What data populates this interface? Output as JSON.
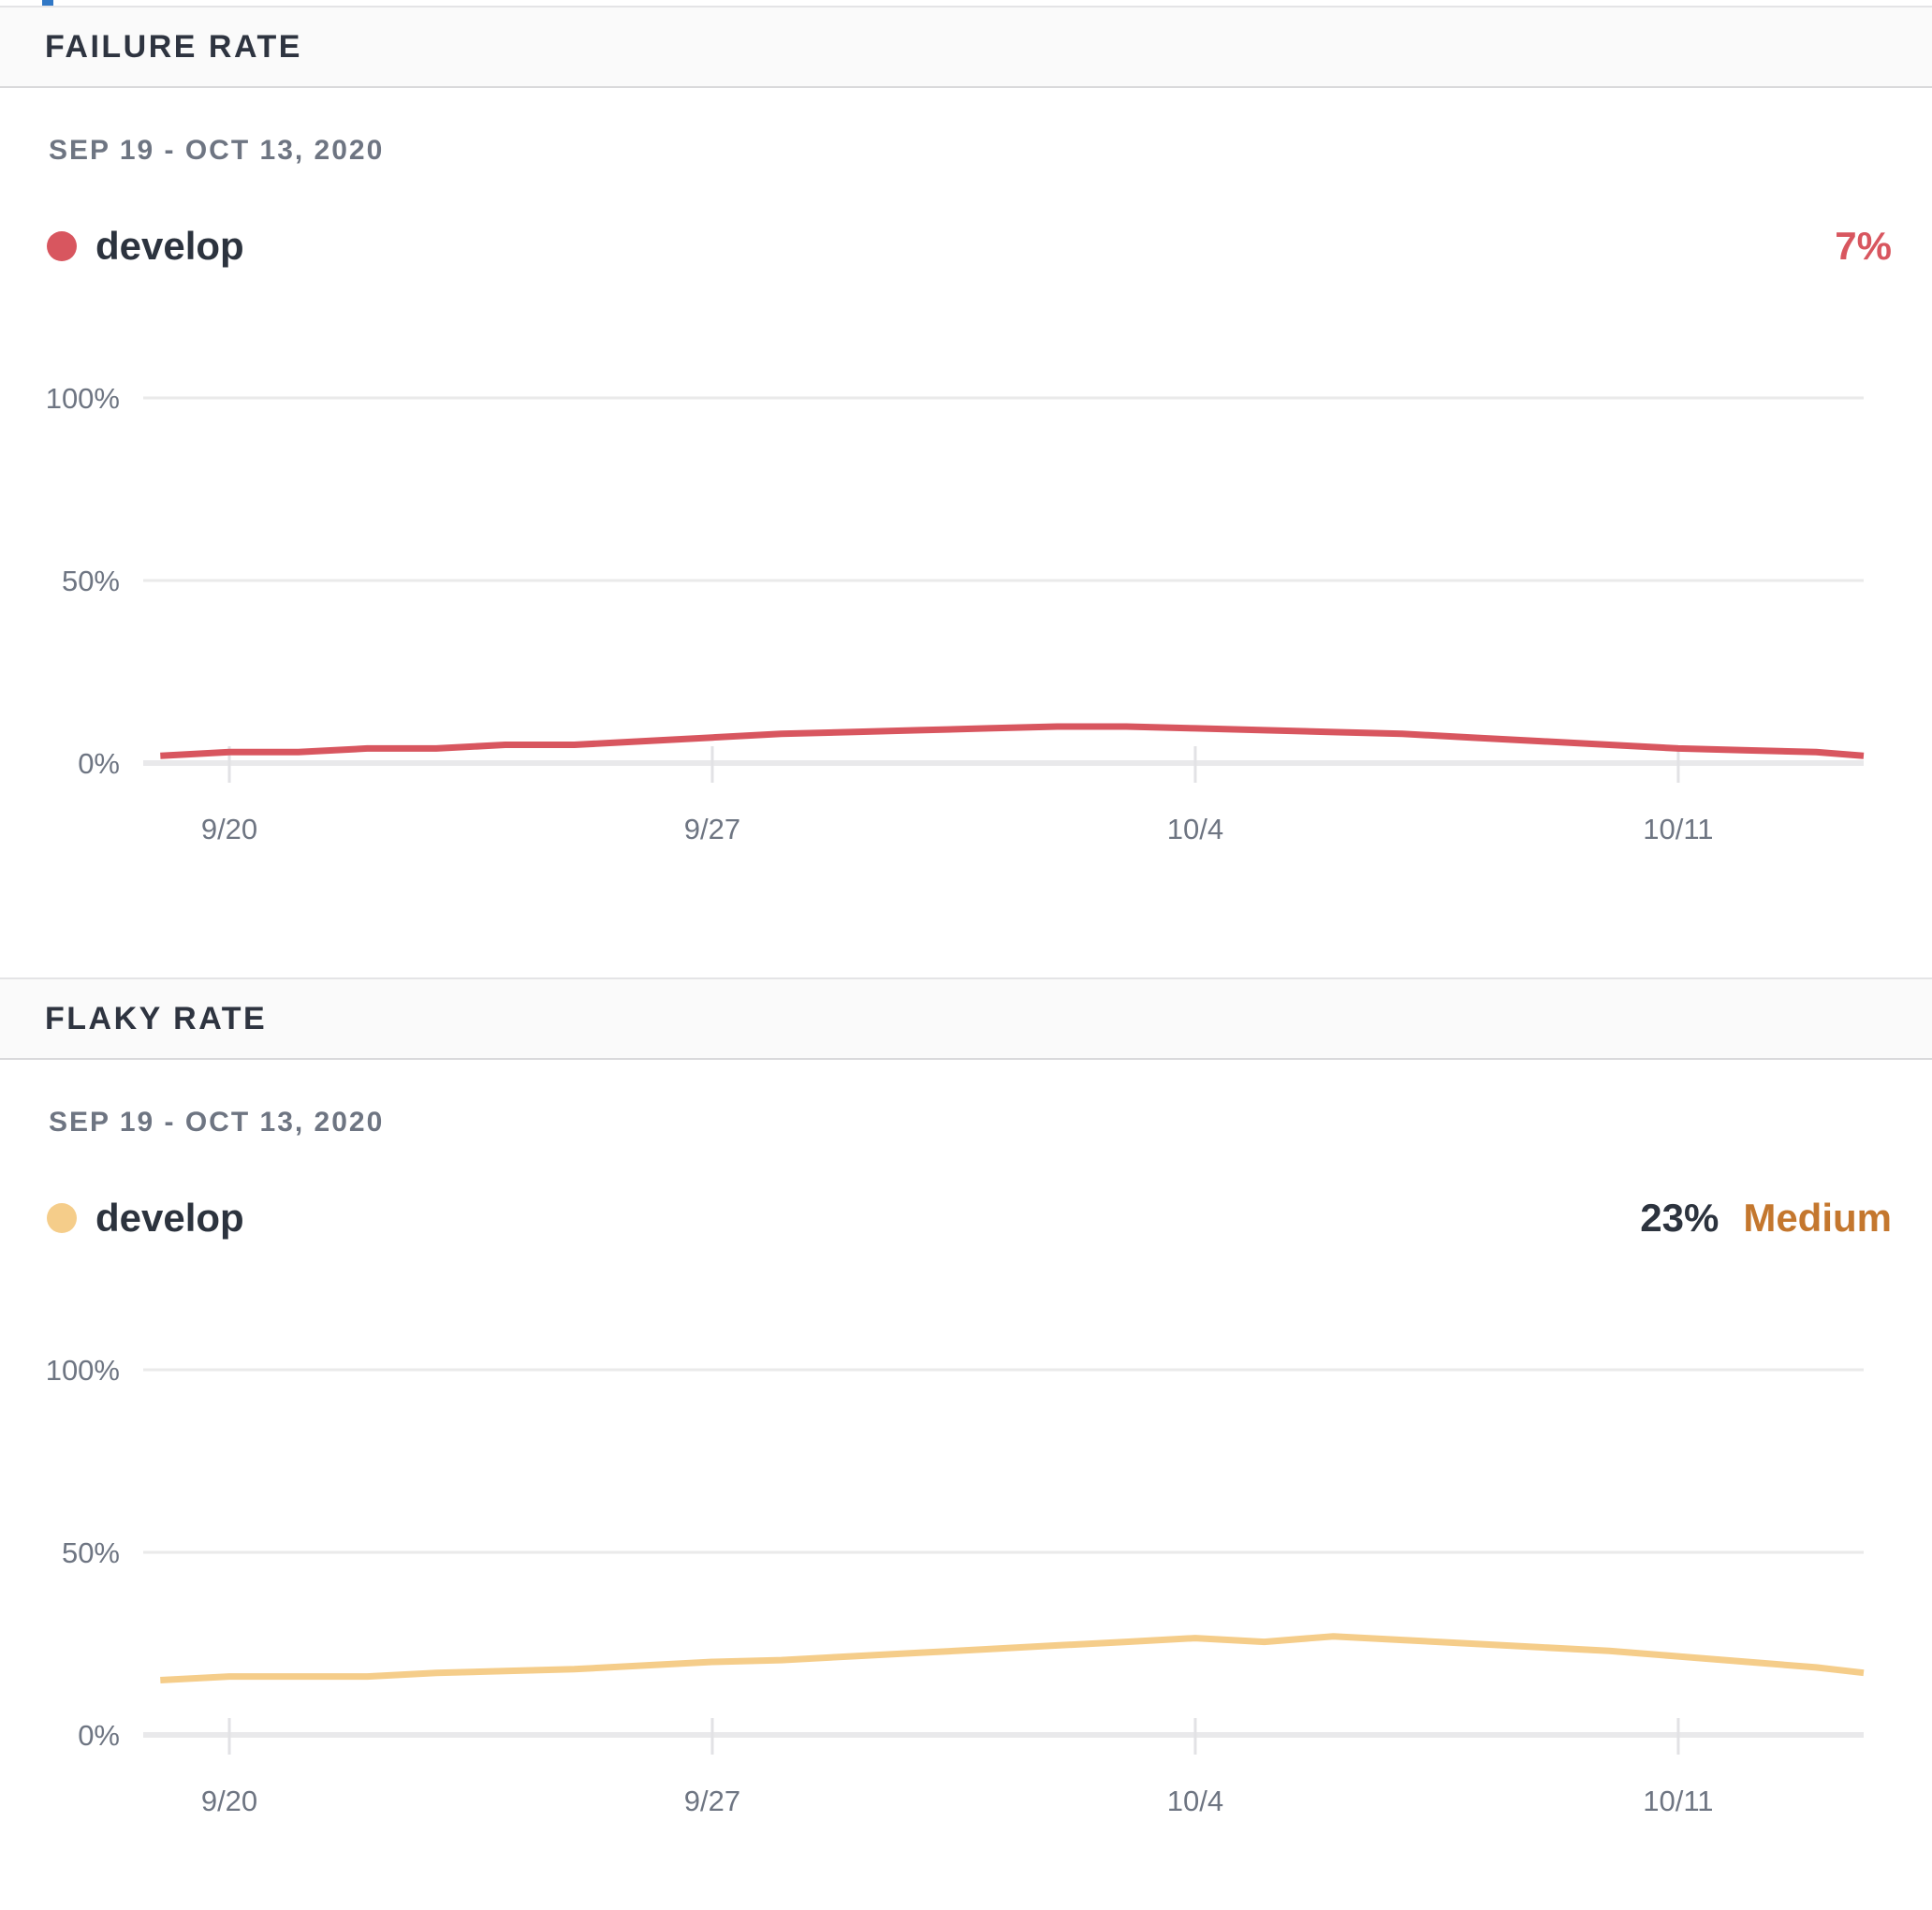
{
  "page": {
    "accent_fragment_color": "#3178c6"
  },
  "panels": [
    {
      "title": "FAILURE RATE",
      "date_range": "SEP 19 - OCT 13, 2020",
      "legend": {
        "name": "develop",
        "color": "#d8565f"
      },
      "summary": {
        "value": "7%",
        "value_color": "#d8565f"
      }
    },
    {
      "title": "FLAKY RATE",
      "date_range": "SEP 19 - OCT 13, 2020",
      "legend": {
        "name": "develop",
        "color": "#f5cd8a"
      },
      "summary": {
        "value": "23%",
        "value_color": "#2c333e",
        "severity": "Medium",
        "severity_color": "#c4772e"
      }
    }
  ],
  "chart_data": [
    {
      "type": "line",
      "title": "Failure rate",
      "series_name": "develop",
      "color": "#d8565f",
      "ylim": [
        0,
        100
      ],
      "grid": "horizontal",
      "y_tick_labels": [
        "0%",
        "50%",
        "100%"
      ],
      "x_tick_labels": [
        "9/20",
        "9/27",
        "10/4",
        "10/11"
      ],
      "x_tick_day_offsets": [
        1,
        8,
        15,
        22
      ],
      "x_start_date": "9/19",
      "x_end_date": "10/13",
      "values_percent_by_day": [
        2,
        3,
        3,
        4,
        4,
        5,
        5,
        6,
        7,
        8,
        8.5,
        9,
        9.5,
        10,
        10,
        9.5,
        9,
        8.5,
        8,
        7,
        6,
        5,
        4,
        3.5,
        3
      ],
      "final_edge_value_percent": 2
    },
    {
      "type": "line",
      "title": "Flaky rate",
      "series_name": "develop",
      "color": "#f5cd8a",
      "ylim": [
        0,
        100
      ],
      "grid": "horizontal",
      "y_tick_labels": [
        "0%",
        "50%",
        "100%"
      ],
      "x_tick_labels": [
        "9/20",
        "9/27",
        "10/4",
        "10/11"
      ],
      "x_tick_day_offsets": [
        1,
        8,
        15,
        22
      ],
      "x_start_date": "9/19",
      "x_end_date": "10/13",
      "values_percent_by_day": [
        15,
        16,
        16,
        16,
        17,
        17.5,
        18,
        19,
        20,
        20.5,
        21.5,
        22.5,
        23.5,
        24.5,
        25.5,
        26.5,
        25.5,
        27,
        26,
        25,
        24,
        23,
        21.5,
        20,
        18.5
      ],
      "final_edge_value_percent": 17
    }
  ]
}
